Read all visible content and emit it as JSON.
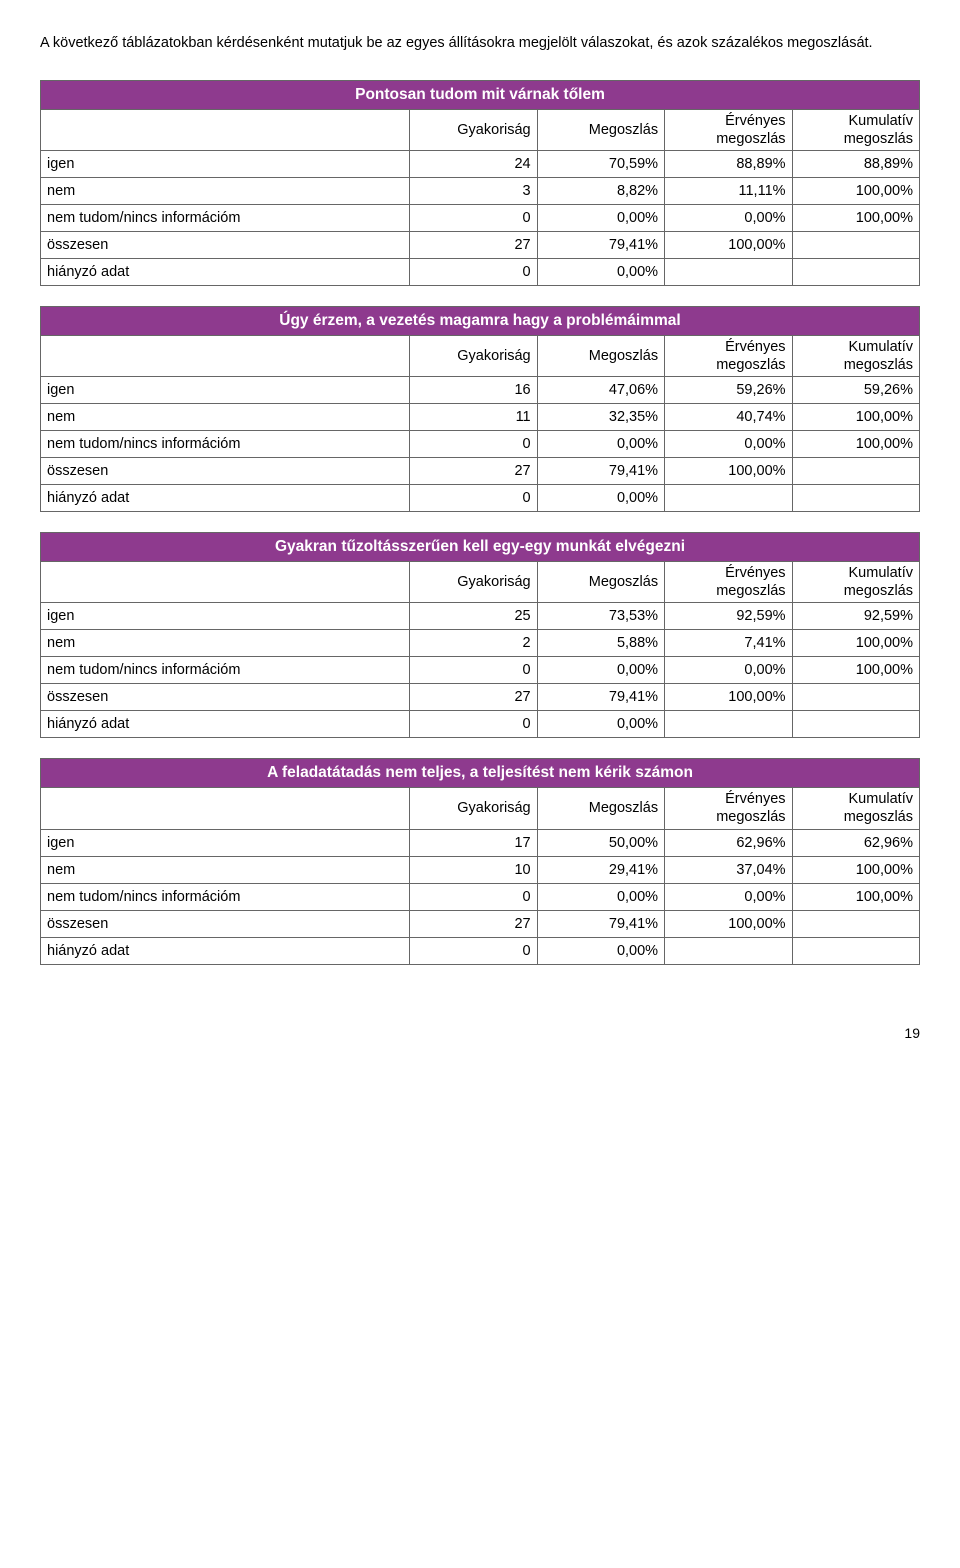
{
  "intro": "A következő táblázatokban kérdésenként mutatjuk be az egyes állításokra megjelölt válaszokat, és azok százalékos megoszlását.",
  "columns": {
    "c1": "Gyakoriság",
    "c2": "Megoszlás",
    "c3": "Érvényes megoszlás",
    "c4": "Kumulatív megoszlás"
  },
  "row_labels": {
    "igen": "igen",
    "nem": "nem",
    "nincs": "nem tudom/nincs információm",
    "ossz": "összesen",
    "hiany": "hiányzó adat"
  },
  "tables": [
    {
      "title": "Pontosan tudom mit várnak tőlem",
      "rows": [
        {
          "k": "igen",
          "v": [
            "24",
            "70,59%",
            "88,89%",
            "88,89%"
          ]
        },
        {
          "k": "nem",
          "v": [
            "3",
            "8,82%",
            "11,11%",
            "100,00%"
          ]
        },
        {
          "k": "nincs",
          "v": [
            "0",
            "0,00%",
            "0,00%",
            "100,00%"
          ]
        },
        {
          "k": "ossz",
          "v": [
            "27",
            "79,41%",
            "100,00%",
            ""
          ]
        },
        {
          "k": "hiany",
          "v": [
            "0",
            "0,00%",
            "",
            ""
          ]
        }
      ]
    },
    {
      "title": "Úgy érzem, a vezetés magamra hagy a problémáimmal",
      "rows": [
        {
          "k": "igen",
          "v": [
            "16",
            "47,06%",
            "59,26%",
            "59,26%"
          ]
        },
        {
          "k": "nem",
          "v": [
            "11",
            "32,35%",
            "40,74%",
            "100,00%"
          ]
        },
        {
          "k": "nincs",
          "v": [
            "0",
            "0,00%",
            "0,00%",
            "100,00%"
          ]
        },
        {
          "k": "ossz",
          "v": [
            "27",
            "79,41%",
            "100,00%",
            ""
          ]
        },
        {
          "k": "hiany",
          "v": [
            "0",
            "0,00%",
            "",
            ""
          ]
        }
      ]
    },
    {
      "title": "Gyakran tűzoltásszerűen kell egy-egy munkát elvégezni",
      "rows": [
        {
          "k": "igen",
          "v": [
            "25",
            "73,53%",
            "92,59%",
            "92,59%"
          ]
        },
        {
          "k": "nem",
          "v": [
            "2",
            "5,88%",
            "7,41%",
            "100,00%"
          ]
        },
        {
          "k": "nincs",
          "v": [
            "0",
            "0,00%",
            "0,00%",
            "100,00%"
          ]
        },
        {
          "k": "ossz",
          "v": [
            "27",
            "79,41%",
            "100,00%",
            ""
          ]
        },
        {
          "k": "hiany",
          "v": [
            "0",
            "0,00%",
            "",
            ""
          ]
        }
      ]
    },
    {
      "title": "A feladatátadás nem teljes, a teljesítést nem kérik számon",
      "rows": [
        {
          "k": "igen",
          "v": [
            "17",
            "50,00%",
            "62,96%",
            "62,96%"
          ]
        },
        {
          "k": "nem",
          "v": [
            "10",
            "29,41%",
            "37,04%",
            "100,00%"
          ]
        },
        {
          "k": "nincs",
          "v": [
            "0",
            "0,00%",
            "0,00%",
            "100,00%"
          ]
        },
        {
          "k": "ossz",
          "v": [
            "27",
            "79,41%",
            "100,00%",
            ""
          ]
        },
        {
          "k": "hiany",
          "v": [
            "0",
            "0,00%",
            "",
            ""
          ]
        }
      ]
    }
  ],
  "page_number": "19",
  "colors": {
    "header_bg": "#8e3a8e",
    "header_fg": "#ffffff",
    "border": "#666666",
    "text": "#000000"
  }
}
